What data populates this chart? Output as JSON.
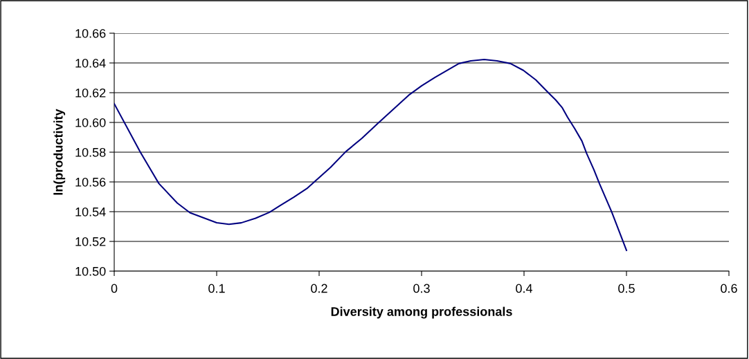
{
  "chart_data": {
    "type": "line",
    "xlabel": "Diversity among professionals",
    "ylabel": "ln(productivity",
    "xlim": [
      0,
      0.6
    ],
    "xticks": [
      0,
      0.1,
      0.2,
      0.3,
      0.4,
      0.5,
      0.6
    ],
    "ylim": [
      10.5,
      10.66
    ],
    "yticks": [
      {
        "value": 10.5,
        "label": "10.50"
      },
      {
        "value": 10.52,
        "label": "10.52"
      },
      {
        "value": 10.54,
        "label": "10.54"
      },
      {
        "value": 10.56,
        "label": "10.56"
      },
      {
        "value": 10.58,
        "label": "10.58"
      },
      {
        "value": 10.6,
        "label": "10.60"
      },
      {
        "value": 10.62,
        "label": "10.62"
      },
      {
        "value": 10.64,
        "label": "10.64"
      },
      {
        "value": 10.66,
        "label": "10.66"
      }
    ],
    "grid": "y",
    "marker": "none",
    "line_style": "solid",
    "series": [
      {
        "color": "#000080",
        "x": [
          0,
          0.0255,
          0.0435,
          0.0615,
          0.0739,
          0.1,
          0.112,
          0.124,
          0.138,
          0.1516,
          0.1617,
          0.1752,
          0.1887,
          0.2,
          0.2113,
          0.2259,
          0.2417,
          0.2574,
          0.2874,
          0.3002,
          0.3131,
          0.3364,
          0.348,
          0.3611,
          0.3737,
          0.3868,
          0.3994,
          0.4115,
          0.4239,
          0.4309,
          0.4374,
          0.4425,
          0.4495,
          0.4565,
          0.4612,
          0.4682,
          0.4736,
          0.4857,
          0.5
        ],
        "values": [
          10.6126,
          10.58,
          10.559,
          10.5458,
          10.5393,
          10.5326,
          10.5315,
          10.5325,
          10.5356,
          10.5396,
          10.544,
          10.5497,
          10.5559,
          10.5629,
          10.5699,
          10.5803,
          10.5893,
          10.5994,
          10.6183,
          10.6247,
          10.6303,
          10.6396,
          10.6414,
          10.6423,
          10.6414,
          10.6396,
          10.635,
          10.6286,
          10.6199,
          10.6151,
          10.6098,
          10.6035,
          10.5958,
          10.5875,
          10.579,
          10.5682,
          10.5589,
          10.5396,
          10.514
        ]
      }
    ]
  }
}
